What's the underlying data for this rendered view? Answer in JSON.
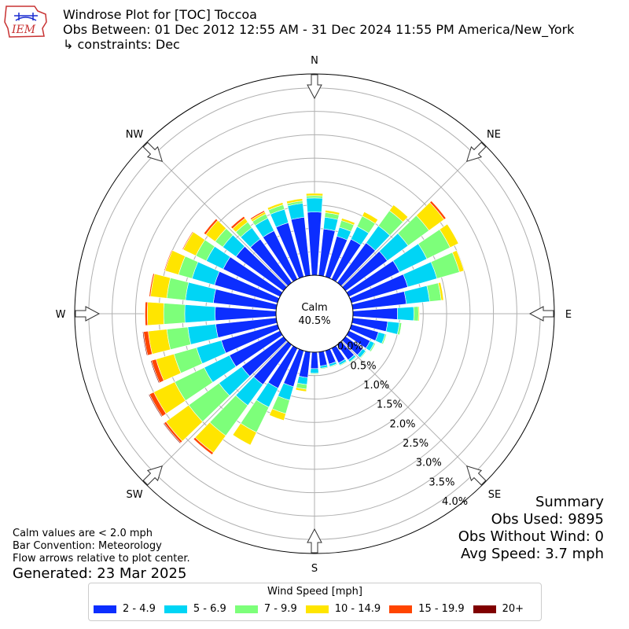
{
  "header": {
    "logo_text": "IEM",
    "title": "Windrose Plot for [TOC] Toccoa",
    "obs_between": "Obs Between: 01 Dec 2012 12:55 AM - 31 Dec 2024 11:55 PM America/New_York",
    "constraints": "↳ constraints: Dec"
  },
  "calm": {
    "label": "Calm",
    "value": "40.5%"
  },
  "directions": {
    "N": "N",
    "NE": "NE",
    "E": "E",
    "SE": "SE",
    "S": "S",
    "SW": "SW",
    "W": "W",
    "NW": "NW"
  },
  "summary": {
    "title": "Summary",
    "obs_used": "Obs Used: 9895",
    "obs_without_wind": "Obs Without Wind: 0",
    "avg_speed": "Avg Speed: 3.7 mph"
  },
  "notes": {
    "calm_note": "Calm values are < 2.0 mph",
    "bar_convention": "Bar Convention: Meteorology",
    "flow_arrows": "Flow arrows relative to plot center.",
    "generated": "Generated: 23 Mar 2025"
  },
  "legend": {
    "title": "Wind Speed [mph]",
    "items": [
      {
        "label": "2 - 4.9",
        "color": "#0c2eff"
      },
      {
        "label": "5 - 6.9",
        "color": "#00d5f5"
      },
      {
        "label": "7 - 9.9",
        "color": "#7dff7a"
      },
      {
        "label": "10 - 14.9",
        "color": "#ffe500"
      },
      {
        "label": "15 - 19.9",
        "color": "#ff4500"
      },
      {
        "label": "20+",
        "color": "#800000"
      }
    ]
  },
  "chart_data": {
    "type": "windrose",
    "title": "Windrose Plot for [TOC] Toccoa",
    "radial_unit": "%",
    "radial_ticks": [
      "0.0%",
      "0.5%",
      "1.0%",
      "1.5%",
      "2.0%",
      "2.5%",
      "3.0%",
      "3.5%",
      "4.0%"
    ],
    "radial_tick_values": [
      0,
      0.5,
      1.0,
      1.5,
      2.0,
      2.5,
      3.0,
      3.5,
      4.0
    ],
    "rmax": 4.3,
    "calm_percent": 40.5,
    "speed_bins": [
      "2 - 4.9",
      "5 - 6.9",
      "7 - 9.9",
      "10 - 14.9",
      "15 - 19.9",
      "20+"
    ],
    "directions_deg": [
      0,
      10,
      20,
      30,
      40,
      50,
      60,
      70,
      80,
      90,
      100,
      110,
      120,
      130,
      140,
      150,
      160,
      170,
      180,
      190,
      200,
      210,
      220,
      230,
      240,
      250,
      260,
      270,
      280,
      290,
      300,
      310,
      320,
      330,
      340,
      350
    ],
    "series": [
      {
        "name": "2 - 4.9",
        "values": [
          1.35,
          1.0,
          0.9,
          0.95,
          1.05,
          1.1,
          1.2,
          1.25,
          1.15,
          0.95,
          0.75,
          0.6,
          0.5,
          0.45,
          0.4,
          0.35,
          0.3,
          0.3,
          0.35,
          0.55,
          0.8,
          0.95,
          1.05,
          1.1,
          1.2,
          1.25,
          1.3,
          1.3,
          1.35,
          1.4,
          1.35,
          1.25,
          1.15,
          1.15,
          1.2,
          1.25
        ]
      },
      {
        "name": "5 - 6.9",
        "values": [
          0.3,
          0.25,
          0.2,
          0.3,
          0.45,
          0.55,
          0.65,
          0.65,
          0.5,
          0.35,
          0.25,
          0.15,
          0.1,
          0.08,
          0.05,
          0.05,
          0.05,
          0.05,
          0.1,
          0.15,
          0.3,
          0.45,
          0.55,
          0.6,
          0.6,
          0.55,
          0.6,
          0.65,
          0.6,
          0.5,
          0.4,
          0.35,
          0.3,
          0.3,
          0.3,
          0.3
        ]
      },
      {
        "name": "7 - 9.9",
        "values": [
          0.05,
          0.1,
          0.15,
          0.25,
          0.4,
          0.55,
          0.55,
          0.5,
          0.25,
          0.1,
          0.05,
          0.03,
          0.03,
          0.02,
          0.02,
          0.02,
          0.02,
          0.02,
          0.02,
          0.1,
          0.3,
          0.6,
          0.8,
          0.8,
          0.7,
          0.5,
          0.45,
          0.45,
          0.4,
          0.3,
          0.25,
          0.2,
          0.15,
          0.1,
          0.1,
          0.05
        ]
      },
      {
        "name": "10 - 14.9",
        "values": [
          0.05,
          0.05,
          0.05,
          0.1,
          0.15,
          0.4,
          0.2,
          0.1,
          0.05,
          0.02,
          0.01,
          0.01,
          0.01,
          0.01,
          0.01,
          0.01,
          0.01,
          0.01,
          0.01,
          0.05,
          0.15,
          0.3,
          0.45,
          0.6,
          0.5,
          0.4,
          0.4,
          0.35,
          0.35,
          0.3,
          0.3,
          0.25,
          0.1,
          0.05,
          0.05,
          0.05
        ]
      },
      {
        "name": "15 - 19.9",
        "values": [
          0,
          0,
          0,
          0,
          0,
          0.05,
          0,
          0,
          0,
          0,
          0,
          0,
          0,
          0,
          0,
          0,
          0,
          0,
          0,
          0,
          0,
          0,
          0.05,
          0.05,
          0.1,
          0.1,
          0.1,
          0.05,
          0.03,
          0.02,
          0.02,
          0.05,
          0.05,
          0.03,
          0,
          0
        ]
      },
      {
        "name": "20+",
        "values": [
          0,
          0,
          0,
          0,
          0,
          0.01,
          0,
          0,
          0,
          0,
          0,
          0,
          0,
          0,
          0,
          0,
          0,
          0,
          0,
          0,
          0,
          0,
          0,
          0.02,
          0.02,
          0.02,
          0.02,
          0.01,
          0.01,
          0.01,
          0.01,
          0.01,
          0.01,
          0,
          0,
          0
        ]
      }
    ],
    "grid": true
  }
}
